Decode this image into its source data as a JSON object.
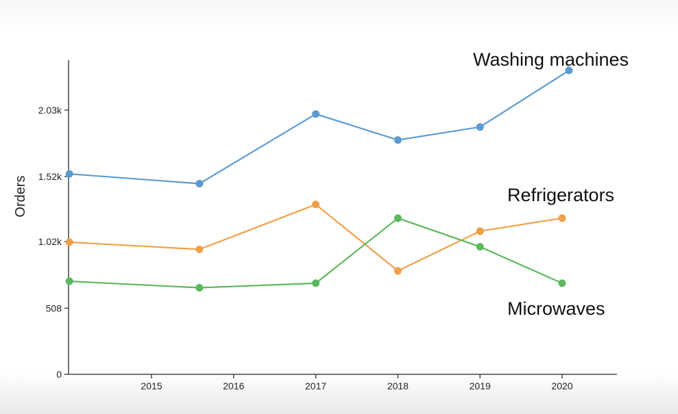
{
  "chart_data": {
    "type": "line",
    "title": "",
    "xlabel": "",
    "ylabel": "Orders",
    "x_ticks": [
      "2015",
      "2016",
      "2017",
      "2018",
      "2019",
      "2020"
    ],
    "y_ticks": [
      "0",
      "508",
      "1.02k",
      "1.52k",
      "2.03k"
    ],
    "ylim": [
      0,
      2430
    ],
    "grid": false,
    "series": [
      {
        "name": "Washing machines",
        "color": "#5b9bd0",
        "points": [
          {
            "x": "2014",
            "y": 1540
          },
          {
            "x": "2015-08",
            "y": 1465
          },
          {
            "x": "2017",
            "y": 2000
          },
          {
            "x": "2018",
            "y": 1800
          },
          {
            "x": "2019",
            "y": 1900
          },
          {
            "x": "2020-02",
            "y": 2335
          }
        ]
      },
      {
        "name": "Refrigerators",
        "color": "#f0a048",
        "points": [
          {
            "x": "2014",
            "y": 1015
          },
          {
            "x": "2015-08",
            "y": 960
          },
          {
            "x": "2017",
            "y": 1305
          },
          {
            "x": "2018",
            "y": 795
          },
          {
            "x": "2019",
            "y": 1100
          },
          {
            "x": "2020",
            "y": 1200
          }
        ]
      },
      {
        "name": "Microwaves",
        "color": "#5cb85c",
        "points": [
          {
            "x": "2014",
            "y": 715
          },
          {
            "x": "2015-08",
            "y": 665
          },
          {
            "x": "2017",
            "y": 700
          },
          {
            "x": "2018",
            "y": 1200
          },
          {
            "x": "2019",
            "y": 980
          },
          {
            "x": "2020",
            "y": 700
          }
        ]
      }
    ]
  }
}
